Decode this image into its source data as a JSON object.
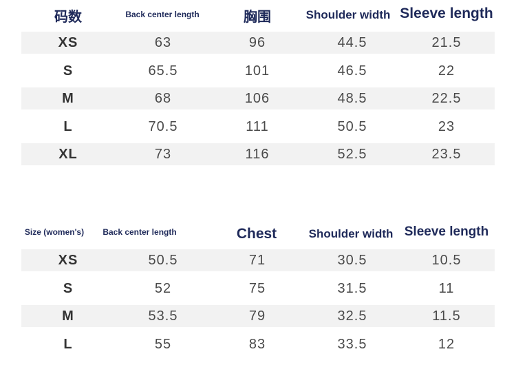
{
  "tables": [
    {
      "headers": [
        "码数",
        "Back center length",
        "胸围",
        "Shoulder width",
        "Sleeve length"
      ],
      "rows": [
        [
          "XS",
          "63",
          "96",
          "44.5",
          "21.5"
        ],
        [
          "S",
          "65.5",
          "101",
          "46.5",
          "22"
        ],
        [
          "M",
          "68",
          "106",
          "48.5",
          "22.5"
        ],
        [
          "L",
          "70.5",
          "111",
          "50.5",
          "23"
        ],
        [
          "XL",
          "73",
          "116",
          "52.5",
          "23.5"
        ]
      ]
    },
    {
      "headers": [
        "Size (women's)",
        "Back center length",
        "Chest",
        "Shoulder width",
        "Sleeve length"
      ],
      "rows": [
        [
          "XS",
          "50.5",
          "71",
          "30.5",
          "10.5"
        ],
        [
          "S",
          "52",
          "75",
          "31.5",
          "11"
        ],
        [
          "M",
          "53.5",
          "79",
          "32.5",
          "11.5"
        ],
        [
          "L",
          "55",
          "83",
          "33.5",
          "12"
        ]
      ]
    }
  ]
}
